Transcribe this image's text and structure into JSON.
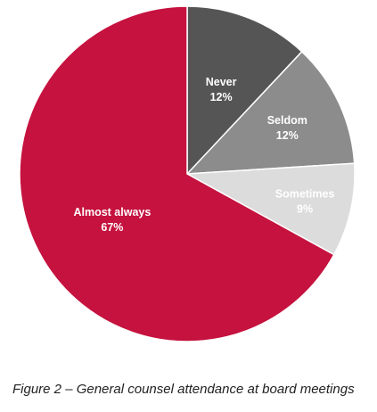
{
  "chart_data": {
    "type": "pie",
    "categories": [
      "Never",
      "Seldom",
      "Sometimes",
      "Almost always"
    ],
    "values": [
      12,
      12,
      9,
      67
    ],
    "value_labels": [
      "12%",
      "12%",
      "9%",
      "67%"
    ],
    "colors": [
      "#555555",
      "#8c8c8c",
      "#dcdcdc",
      "#c5123e"
    ],
    "label_colors": [
      "#ffffff",
      "#ffffff",
      "#ffffff",
      "#ffffff"
    ],
    "start_angle_deg": 0,
    "direction": "clockwise",
    "legend": "none"
  },
  "caption": "Figure 2 – General counsel attendance at board meetings"
}
